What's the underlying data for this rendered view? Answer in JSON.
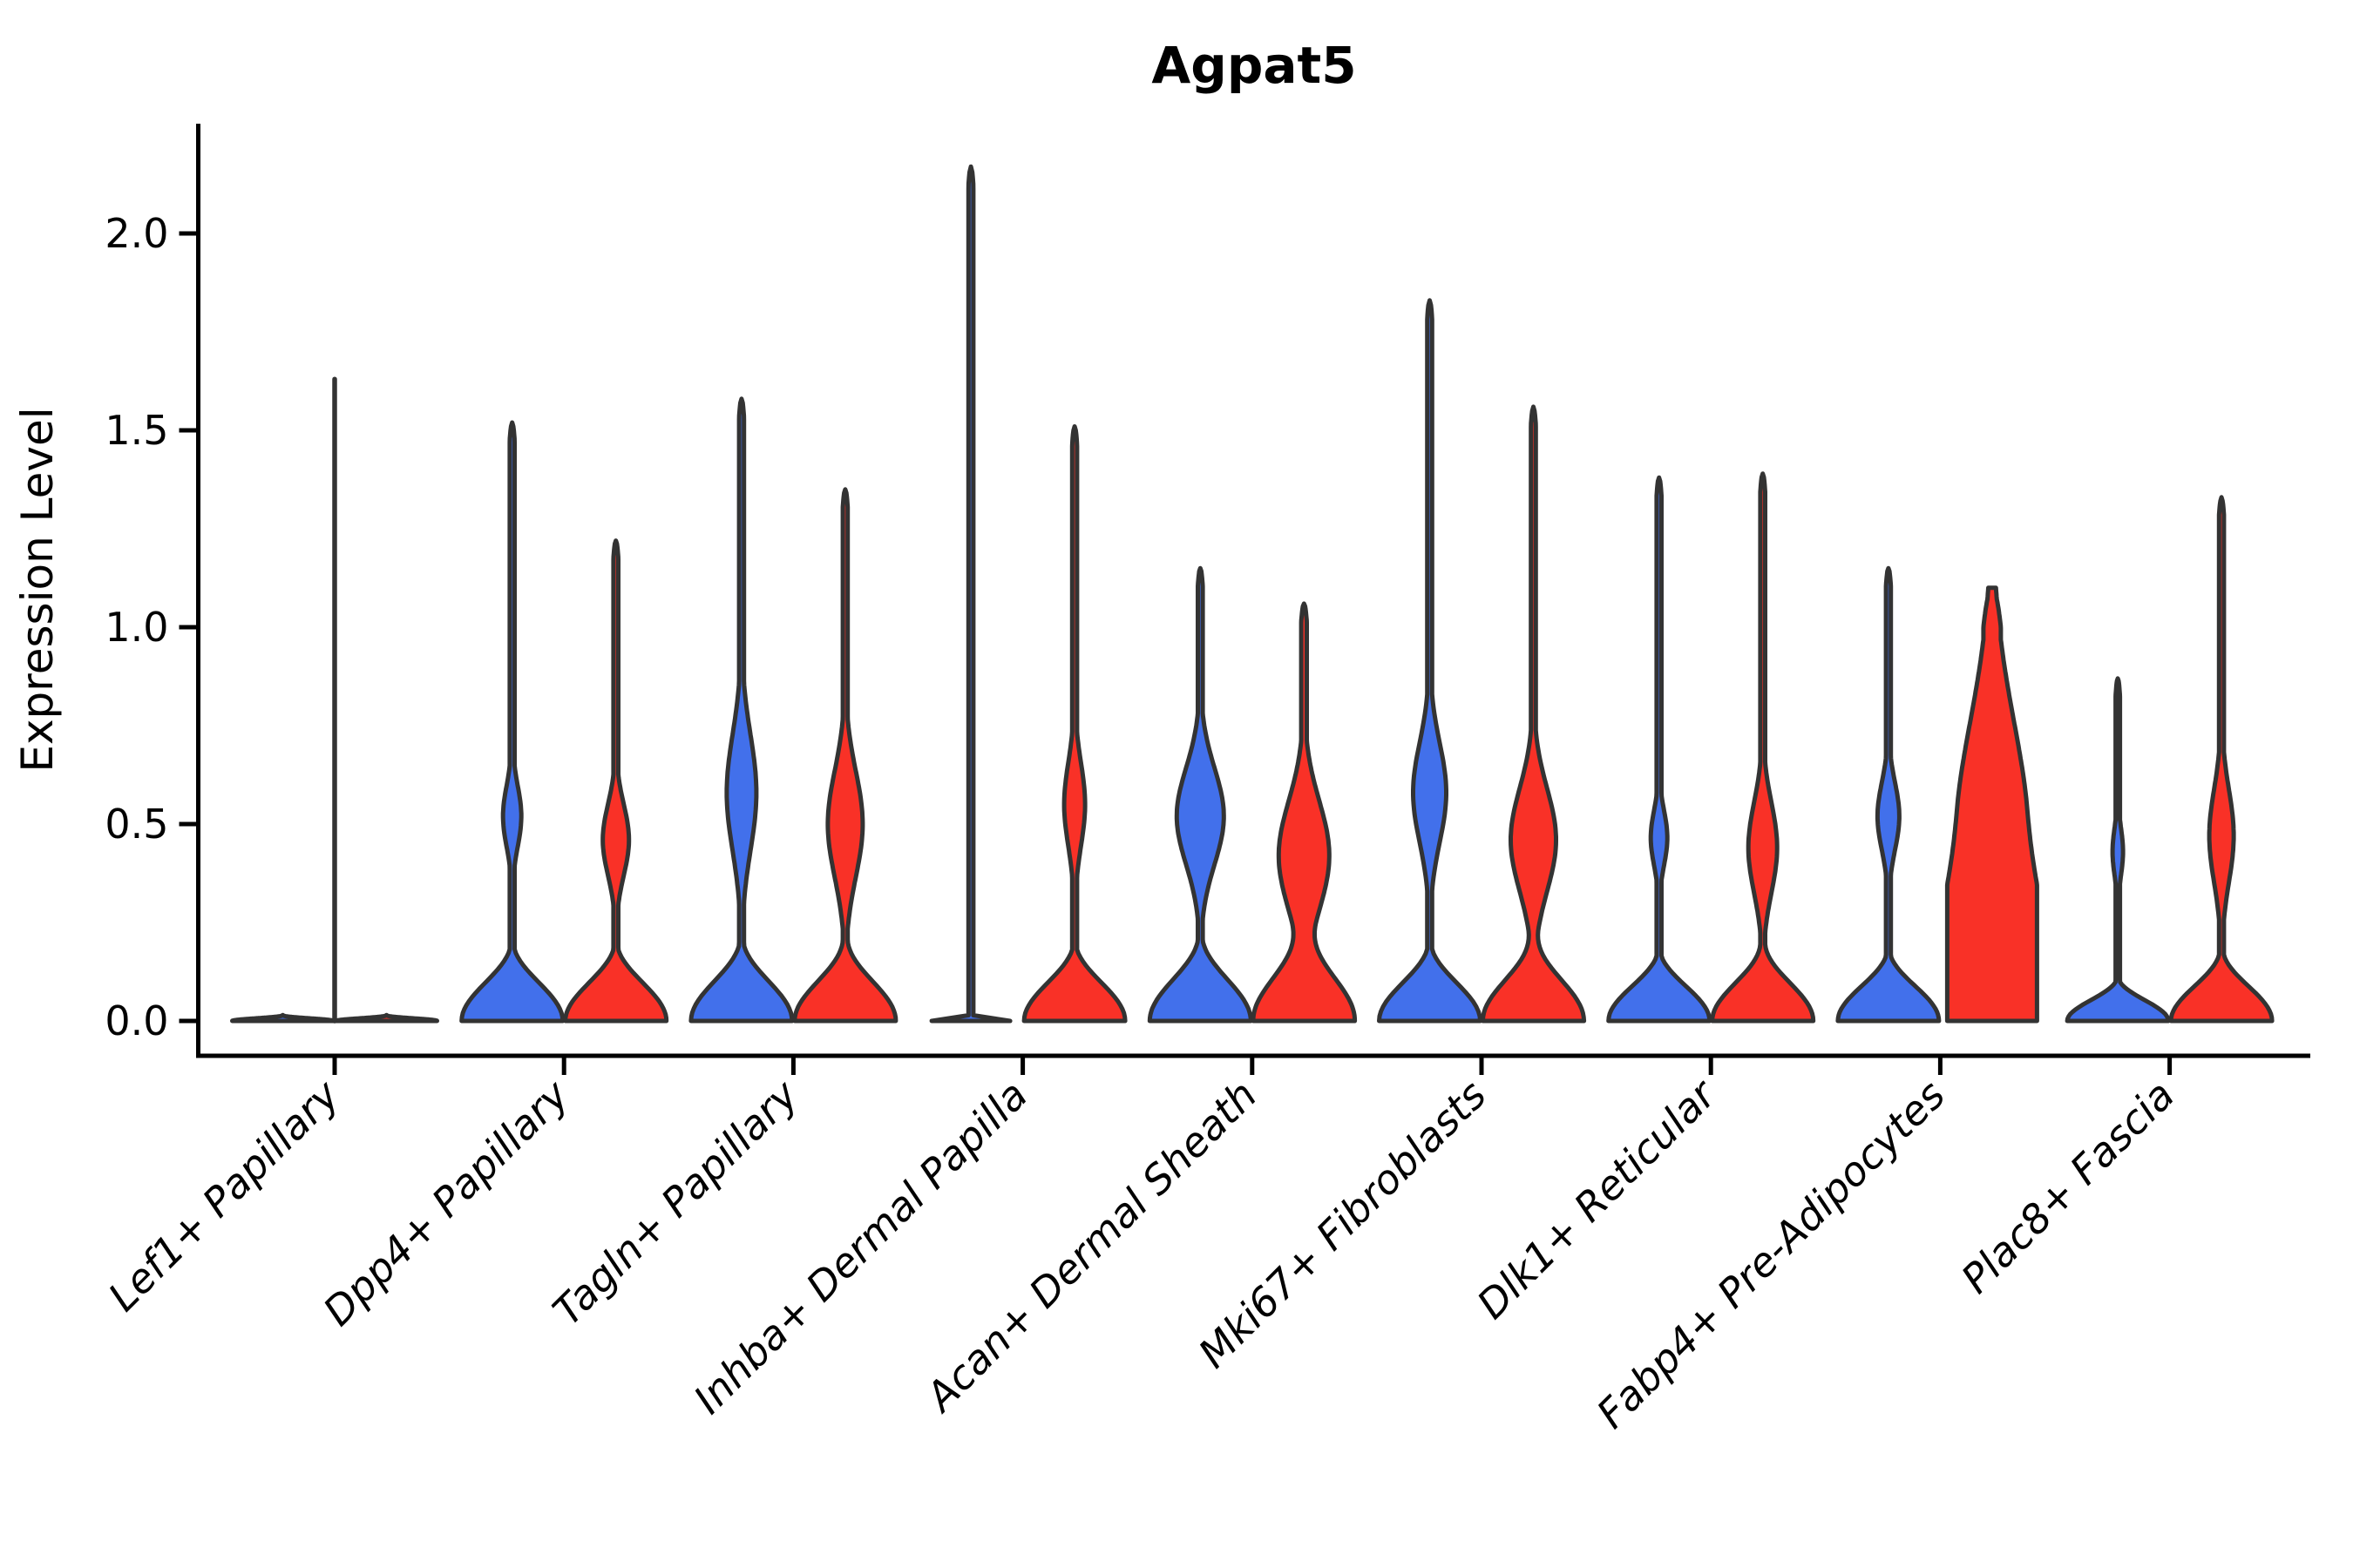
{
  "title": "Agpat5",
  "axes": {
    "ylabel": "Expression Level",
    "ytick_labels": [
      "0.0",
      "0.5",
      "1.0",
      "1.5",
      "2.0"
    ],
    "ytick_values": [
      0.0,
      0.5,
      1.0,
      1.5,
      2.0
    ],
    "ylim_visible": [
      -0.09,
      2.28
    ],
    "grid": false,
    "legend": "none"
  },
  "chart_data": {
    "type": "violin",
    "orientation": "vertical",
    "groups": [
      {
        "key": "blue",
        "color": "#4270EB"
      },
      {
        "key": "red",
        "color": "#F93127"
      }
    ],
    "outline_color": "#333333",
    "spine_color": "#000000",
    "categories": [
      "Lef1+ Papillary",
      "Dpp4+ Papillary",
      "Tagln+ Papillary",
      "Inhba+ Dermal Papilla",
      "Acan+ Dermal Sheath",
      "Mki67+ Fibroblasts",
      "Dlk1+ Reticular",
      "Fabp4+ Pre-Adipocytes",
      "Plac8+ Fascia"
    ],
    "violins": [
      {
        "category": "Lef1+ Papillary",
        "center_spike_max": 1.63,
        "blue": {
          "max": 0.015,
          "base_h": 0.015,
          "base_hw": 58,
          "spike_hw": 0,
          "bulge": null
        },
        "red": {
          "max": 0.015,
          "base_h": 0.015,
          "base_hw": 58,
          "spike_hw": 0,
          "bulge": null
        }
      },
      {
        "category": "Dpp4+ Papillary",
        "center_spike_max": null,
        "blue": {
          "max": 1.52,
          "base_h": 0.22,
          "base_hw": 58,
          "spike_hw": 2.8,
          "bulge": {
            "c": 0.52,
            "h": 0.19,
            "w": 10.5
          }
        },
        "red": {
          "max": 1.22,
          "base_h": 0.22,
          "base_hw": 58,
          "spike_hw": 2.8,
          "bulge": {
            "c": 0.46,
            "h": 0.22,
            "w": 15
          }
        }
      },
      {
        "category": "Tagln+ Papillary",
        "center_spike_max": null,
        "blue": {
          "max": 1.58,
          "base_h": 0.23,
          "base_hw": 58,
          "spike_hw": 2.8,
          "bulge": {
            "c": 0.58,
            "h": 0.36,
            "w": 17
          }
        },
        "red": {
          "max": 1.35,
          "base_h": 0.23,
          "base_hw": 58,
          "spike_hw": 2.8,
          "bulge": {
            "c": 0.5,
            "h": 0.33,
            "w": 20
          }
        }
      },
      {
        "category": "Inhba+ Dermal Papilla",
        "center_spike_max": null,
        "blue": {
          "max": 2.17,
          "base_h": 0.015,
          "base_hw": 45,
          "spike_hw": 2.8,
          "bulge": null
        },
        "red": {
          "max": 1.51,
          "base_h": 0.22,
          "base_hw": 58,
          "spike_hw": 2.8,
          "bulge": {
            "c": 0.55,
            "h": 0.26,
            "w": 12
          }
        }
      },
      {
        "category": "Acan+ Dermal Sheath",
        "center_spike_max": null,
        "blue": {
          "max": 1.15,
          "base_h": 0.24,
          "base_hw": 58,
          "spike_hw": 2.8,
          "bulge": {
            "c": 0.52,
            "h": 0.3,
            "w": 27
          }
        },
        "red": {
          "max": 1.06,
          "base_h": 0.26,
          "base_hw": 58,
          "spike_hw": 3.2,
          "bulge": {
            "c": 0.42,
            "h": 0.34,
            "w": 29
          }
        }
      },
      {
        "category": "Mki67+ Fibroblasts",
        "center_spike_max": null,
        "blue": {
          "max": 1.83,
          "base_h": 0.22,
          "base_hw": 58,
          "spike_hw": 2.8,
          "bulge": {
            "c": 0.58,
            "h": 0.31,
            "w": 19
          }
        },
        "red": {
          "max": 1.56,
          "base_h": 0.24,
          "base_hw": 58,
          "spike_hw": 2.8,
          "bulge": {
            "c": 0.46,
            "h": 0.32,
            "w": 26
          }
        }
      },
      {
        "category": "Dlk1+ Reticular",
        "center_spike_max": null,
        "blue": {
          "max": 1.38,
          "base_h": 0.2,
          "base_hw": 58,
          "spike_hw": 2.8,
          "bulge": {
            "c": 0.465,
            "h": 0.17,
            "w": 9.5
          }
        },
        "red": {
          "max": 1.39,
          "base_h": 0.22,
          "base_hw": 58,
          "spike_hw": 2.8,
          "bulge": {
            "c": 0.44,
            "h": 0.28,
            "w": 16.5
          }
        }
      },
      {
        "category": "Fabp4+ Pre-Adipocytes",
        "center_spike_max": null,
        "blue": {
          "max": 1.15,
          "base_h": 0.2,
          "base_hw": 58,
          "spike_hw": 2.8,
          "bulge": {
            "c": 0.52,
            "h": 0.21,
            "w": 12.5
          }
        },
        "red": {
          "max": 1.1,
          "base_h": 0.55,
          "base_hw": 50,
          "spike_hw": 10,
          "cap": 0.1,
          "bulge": {
            "c": 0.45,
            "h": 0.75,
            "w": 42
          }
        }
      },
      {
        "category": "Plac8+ Fascia",
        "center_spike_max": null,
        "blue": {
          "max": 0.87,
          "base_h": 0.12,
          "base_hw": 58,
          "spike_hw": 2.5,
          "bulge": {
            "c": 0.43,
            "h": 0.15,
            "w": 6
          }
        },
        "red": {
          "max": 1.33,
          "base_h": 0.2,
          "base_hw": 58,
          "spike_hw": 2.8,
          "bulge": {
            "c": 0.47,
            "h": 0.29,
            "w": 14
          }
        }
      }
    ]
  }
}
